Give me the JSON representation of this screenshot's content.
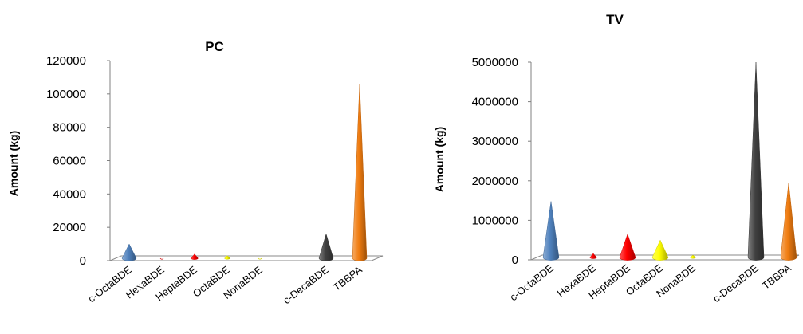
{
  "chart_data": [
    {
      "type": "bar",
      "title": "PC",
      "xlabel": "",
      "ylabel": "Amount (kg)",
      "ylim": [
        0,
        120000
      ],
      "yticks": [
        "0",
        "20000",
        "40000",
        "60000",
        "80000",
        "100000",
        "120000"
      ],
      "categories": [
        "c-OctaBDE",
        "HexaBDE",
        "HeptaBDE",
        "OctaBDE",
        "NonaBDE",
        "c-DecaBDE",
        "TBBPA"
      ],
      "values": [
        10000,
        700,
        4000,
        3000,
        800,
        16000,
        106000
      ],
      "colors": [
        "#4f81bd",
        "#ff0000",
        "#ff0000",
        "#ffff00",
        "#ffff00",
        "#404040",
        "#f07c10"
      ],
      "grid": false,
      "legend": "none",
      "mark_shape": "cone"
    },
    {
      "type": "bar",
      "title": "TV",
      "xlabel": "",
      "ylabel": "Amount (kg)",
      "ylim": [
        0,
        5000000
      ],
      "yticks": [
        "0",
        "1000000",
        "2000000",
        "3000000",
        "4000000",
        "5000000"
      ],
      "categories": [
        "c-OctaBDE",
        "HexaBDE",
        "HeptaBDE",
        "OctaBDE",
        "NonaBDE",
        "c-DecaBDE",
        "TBBPA"
      ],
      "values": [
        1480000,
        160000,
        650000,
        500000,
        120000,
        5000000,
        1950000
      ],
      "colors": [
        "#4f81bd",
        "#ff0000",
        "#ff0000",
        "#ffff00",
        "#ffff00",
        "#404040",
        "#f07c10"
      ],
      "grid": false,
      "legend": "none",
      "mark_shape": "cone"
    }
  ]
}
